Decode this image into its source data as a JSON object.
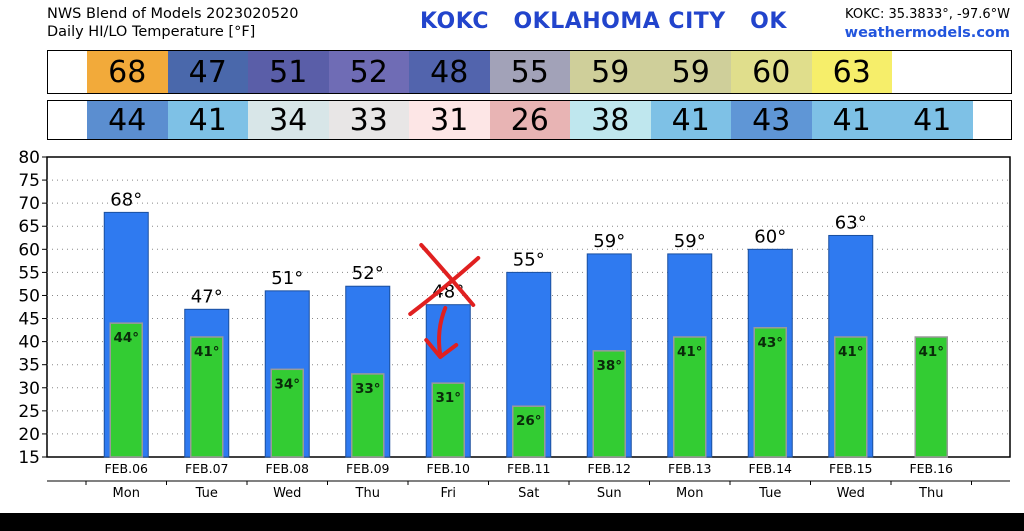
{
  "header": {
    "line1": "NWS Blend of Models 2023020520",
    "line2": "Daily HI/LO Temperature [°F]",
    "station_title": "KOKC   OKLAHOMA CITY   OK",
    "coords": "KOKC: 35.3833°, -97.6°W",
    "site": "weathermodels.com"
  },
  "hi_strip": [
    {
      "value": "68",
      "color": "#f2aa3a"
    },
    {
      "value": "47",
      "color": "#4a68ab"
    },
    {
      "value": "51",
      "color": "#5a5ea8"
    },
    {
      "value": "52",
      "color": "#6f6cb5"
    },
    {
      "value": "48",
      "color": "#5264ad"
    },
    {
      "value": "55",
      "color": "#a2a2b8"
    },
    {
      "value": "59",
      "color": "#cfcf9a"
    },
    {
      "value": "59",
      "color": "#cfcf9a"
    },
    {
      "value": "60",
      "color": "#e0de8c"
    },
    {
      "value": "63",
      "color": "#f6ee6a"
    }
  ],
  "lo_strip": [
    {
      "value": "44",
      "color": "#5b8ed0"
    },
    {
      "value": "41",
      "color": "#7ec1e6"
    },
    {
      "value": "34",
      "color": "#d8e6e8"
    },
    {
      "value": "33",
      "color": "#e8e6e6"
    },
    {
      "value": "31",
      "color": "#fde6e6"
    },
    {
      "value": "26",
      "color": "#e8b4b4"
    },
    {
      "value": "38",
      "color": "#bfe7ee"
    },
    {
      "value": "41",
      "color": "#7ec1e6"
    },
    {
      "value": "43",
      "color": "#5f96d6"
    },
    {
      "value": "41",
      "color": "#7ec1e6"
    },
    {
      "value": "41",
      "color": "#7ec1e6"
    }
  ],
  "chart_data": {
    "type": "bar",
    "categories": [
      "FEB.06",
      "FEB.07",
      "FEB.08",
      "FEB.09",
      "FEB.10",
      "FEB.11",
      "FEB.12",
      "FEB.13",
      "FEB.14",
      "FEB.15",
      "FEB.16"
    ],
    "days": [
      "Mon",
      "Tue",
      "Wed",
      "Thu",
      "Fri",
      "Sat",
      "Sun",
      "Mon",
      "Tue",
      "Wed",
      "Thu"
    ],
    "series": [
      {
        "values": [
          68,
          47,
          51,
          52,
          48,
          55,
          59,
          59,
          60,
          63,
          null
        ],
        "labels": [
          "68°",
          "47°",
          "51°",
          "52°",
          "48°",
          "55°",
          "59°",
          "59°",
          "60°",
          "63°",
          ""
        ],
        "color": "#2f7af0"
      },
      {
        "values": [
          44,
          41,
          34,
          33,
          31,
          26,
          38,
          41,
          43,
          41,
          41
        ],
        "labels": [
          "44°",
          "41°",
          "34°",
          "33°",
          "31°",
          "26°",
          "38°",
          "41°",
          "43°",
          "41°",
          "41°"
        ],
        "color": "#33cc33"
      }
    ],
    "ylim": [
      15,
      80
    ],
    "yticks": [
      15,
      20,
      25,
      30,
      35,
      40,
      45,
      50,
      55,
      60,
      65,
      70,
      75,
      80
    ],
    "grid": true,
    "annotation": {
      "type": "hand-drawn red X over FEB.10 high with downward arrow",
      "color": "#e02020"
    }
  }
}
